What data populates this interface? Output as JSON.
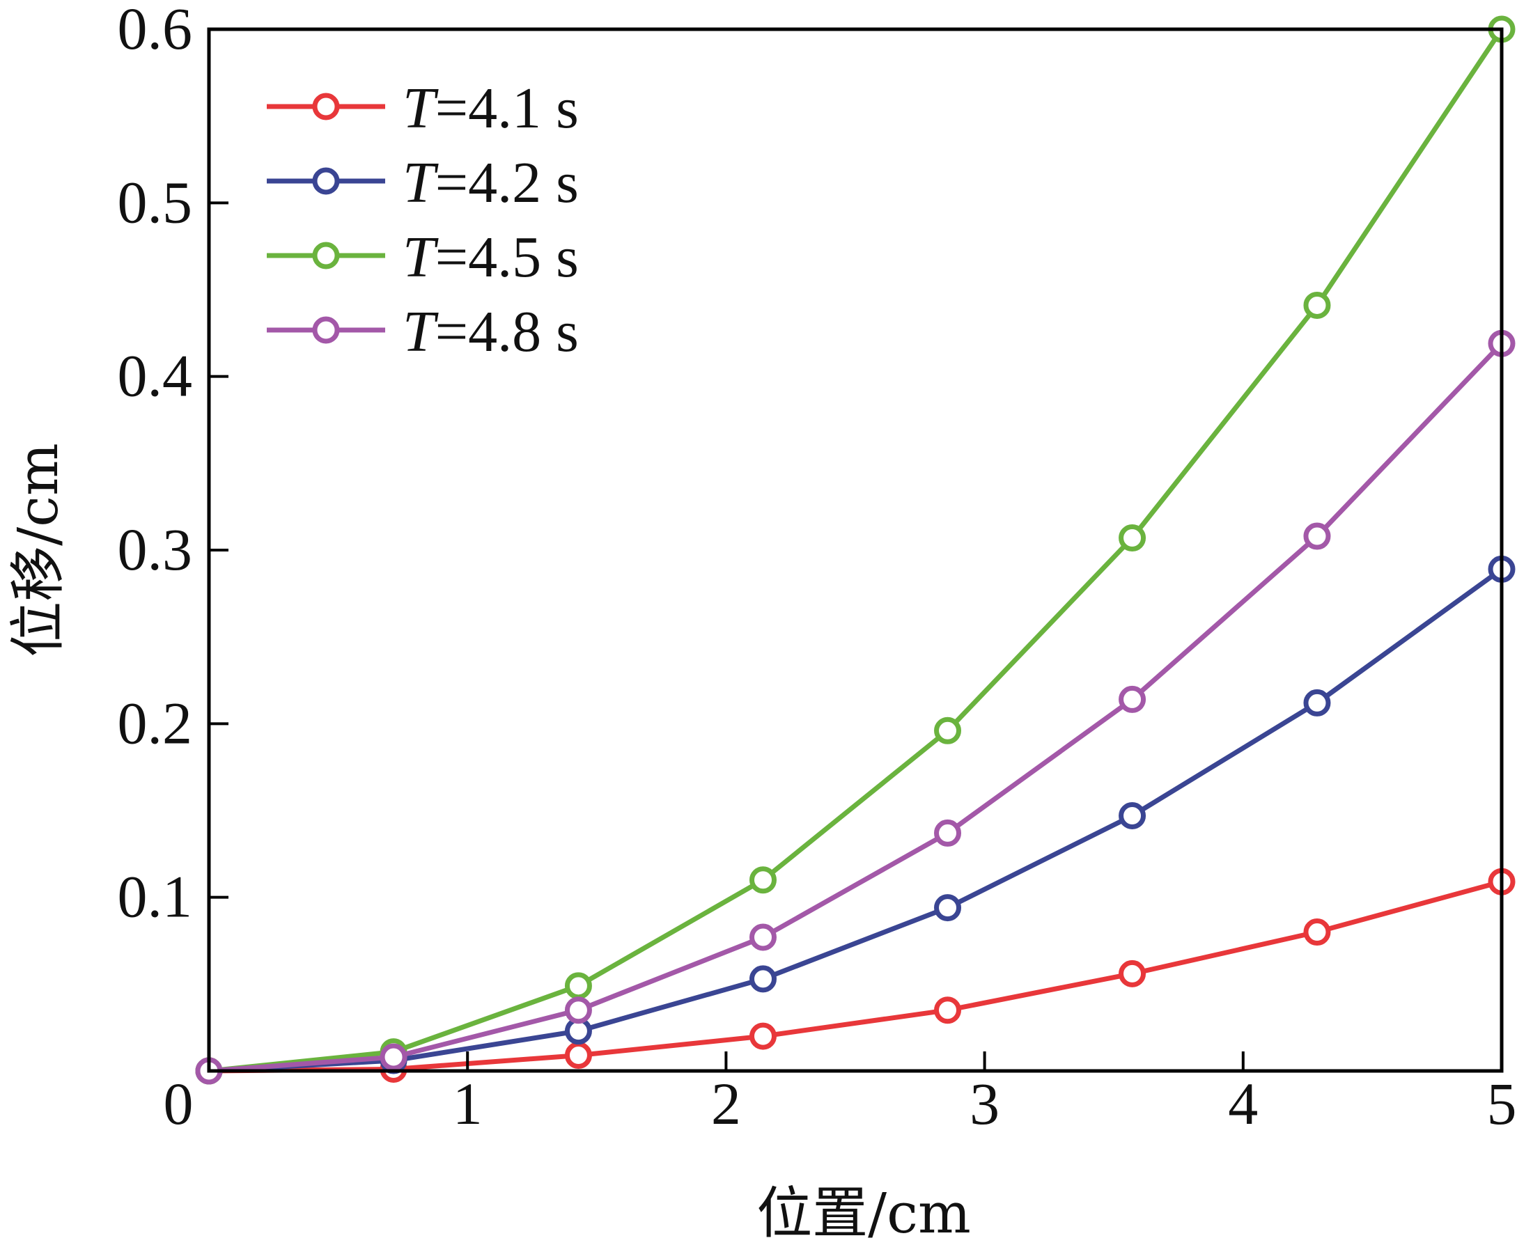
{
  "chart_data": {
    "type": "line",
    "xlabel": "位置/cm",
    "ylabel": "位移/cm",
    "xlim": [
      0,
      5
    ],
    "ylim": [
      0,
      0.6
    ],
    "x_ticks": [
      {
        "value": 0,
        "label": "0"
      },
      {
        "value": 1,
        "label": "1"
      },
      {
        "value": 2,
        "label": "2"
      },
      {
        "value": 3,
        "label": "3"
      },
      {
        "value": 4,
        "label": "4"
      },
      {
        "value": 5,
        "label": "5"
      }
    ],
    "y_ticks": [
      {
        "value": 0.1,
        "label": "0.1"
      },
      {
        "value": 0.2,
        "label": "0.2"
      },
      {
        "value": 0.3,
        "label": "0.3"
      },
      {
        "value": 0.4,
        "label": "0.4"
      },
      {
        "value": 0.5,
        "label": "0.5"
      },
      {
        "value": 0.6,
        "label": "0.6"
      }
    ],
    "grid": false,
    "legend_position": "top-left",
    "x": [
      0,
      0.714,
      1.429,
      2.143,
      2.857,
      3.571,
      4.286,
      5.0
    ],
    "series": [
      {
        "legend_var": "T",
        "legend_rest": "=4.1 s",
        "color": "#e8373a",
        "values": [
          0,
          0.001,
          0.009,
          0.02,
          0.035,
          0.056,
          0.08,
          0.109
        ]
      },
      {
        "legend_var": "T",
        "legend_rest": "=4.2 s",
        "color": "#3a4593",
        "values": [
          0,
          0.006,
          0.023,
          0.053,
          0.094,
          0.147,
          0.212,
          0.289
        ]
      },
      {
        "legend_var": "T",
        "legend_rest": "=4.5 s",
        "color": "#6ab33e",
        "values": [
          0,
          0.011,
          0.049,
          0.11,
          0.196,
          0.307,
          0.441,
          0.6
        ]
      },
      {
        "legend_var": "T",
        "legend_rest": "=4.8 s",
        "color": "#a358a8",
        "values": [
          0,
          0.008,
          0.035,
          0.077,
          0.137,
          0.214,
          0.308,
          0.419
        ]
      }
    ]
  }
}
